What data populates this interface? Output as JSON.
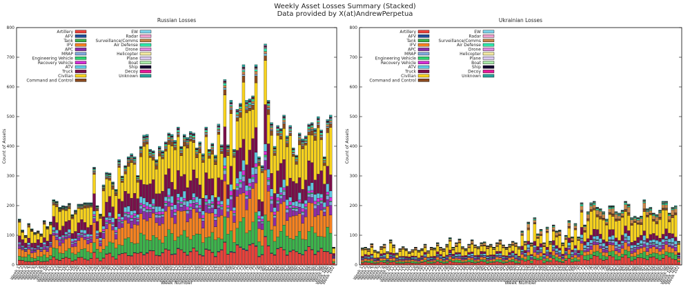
{
  "figure": {
    "title": "Weekly Asset Losses Summary (Stacked)",
    "subtitle": "Data provided by X(at)AndrewPerpetua"
  },
  "chart_data": [
    {
      "type": "bar",
      "stacked": true,
      "title": "Russian Losses",
      "xlabel": "Week Number",
      "ylabel": "Count of Assets",
      "ylim": [
        0,
        800
      ],
      "yticks": [
        0,
        100,
        200,
        300,
        400,
        500,
        600,
        700,
        800
      ],
      "grid": false,
      "legend_position": "top-left",
      "week_count": 102,
      "legend": [
        {
          "name": "Artillery",
          "color": "#e8413a"
        },
        {
          "name": "AFV",
          "color": "#1f4e9a"
        },
        {
          "name": "Tank",
          "color": "#3cb44b"
        },
        {
          "name": "IFV",
          "color": "#f58220"
        },
        {
          "name": "APC",
          "color": "#8e2ba8"
        },
        {
          "name": "MRAP",
          "color": "#7fa7d9"
        },
        {
          "name": "Engineering Vehicle",
          "color": "#2dd36f"
        },
        {
          "name": "Recovery Vehicle",
          "color": "#d62fd6"
        },
        {
          "name": "ATV",
          "color": "#5ec7e0"
        },
        {
          "name": "Truck",
          "color": "#7a0f4a"
        },
        {
          "name": "Civilian",
          "color": "#f7d21e"
        },
        {
          "name": "Command and Control",
          "color": "#8b4a1e"
        },
        {
          "name": "EW",
          "color": "#7ad0e8"
        },
        {
          "name": "Radar",
          "color": "#f0a0d0"
        },
        {
          "name": "Surveillance/Comms",
          "color": "#c8864a"
        },
        {
          "name": "Air Defense",
          "color": "#2ee6a8"
        },
        {
          "name": "Drone",
          "color": "#e088e0"
        },
        {
          "name": "Helicopter",
          "color": "#f0e6a0"
        },
        {
          "name": "Plane",
          "color": "#d9c8f0"
        },
        {
          "name": "Boat",
          "color": "#a8e8a8"
        },
        {
          "name": "Ship",
          "color": "#140030"
        },
        {
          "name": "Decoy",
          "color": "#e8189a"
        },
        {
          "name": "Unknown",
          "color": "#2aa198"
        }
      ],
      "totals": [
        155,
        118,
        100,
        140,
        122,
        110,
        115,
        105,
        150,
        130,
        145,
        220,
        215,
        195,
        200,
        198,
        208,
        170,
        185,
        205,
        205,
        210,
        210,
        210,
        330,
        200,
        172,
        270,
        312,
        310,
        280,
        255,
        355,
        300,
        335,
        365,
        375,
        365,
        302,
        400,
        438,
        440,
        390,
        385,
        355,
        400,
        385,
        415,
        445,
        440,
        420,
        465,
        400,
        440,
        430,
        450,
        445,
        395,
        415,
        375,
        465,
        390,
        410,
        370,
        475,
        405,
        625,
        405,
        555,
        390,
        525,
        545,
        675,
        555,
        560,
        570,
        675,
        365,
        335,
        745,
        555,
        480,
        400,
        470,
        460,
        505,
        435,
        470,
        395,
        370,
        445,
        425,
        435,
        475,
        480,
        460,
        500,
        455,
        365,
        490,
        505,
        60
      ],
      "shares": [
        0.1,
        0.004,
        0.12,
        0.16,
        0.05,
        0.02,
        0.007,
        0.02,
        0.04,
        0.14,
        0.24,
        0.025,
        0.007,
        0.003,
        0.01,
        0.01,
        0.004,
        0.002,
        0.001,
        0.002,
        0.002,
        0.003,
        0.01
      ]
    },
    {
      "type": "bar",
      "stacked": true,
      "title": "Ukrainian Losses",
      "xlabel": "Week Number",
      "ylabel": "Count of Assets",
      "ylim": [
        0,
        800
      ],
      "yticks": [
        0,
        100,
        200,
        300,
        400,
        500,
        600,
        700,
        800
      ],
      "grid": false,
      "legend_position": "top-left",
      "week_count": 102,
      "legend": [
        {
          "name": "Artillery",
          "color": "#e8413a"
        },
        {
          "name": "AFV",
          "color": "#1f4e9a"
        },
        {
          "name": "Tank",
          "color": "#3cb44b"
        },
        {
          "name": "IFV",
          "color": "#f58220"
        },
        {
          "name": "APC",
          "color": "#8e2ba8"
        },
        {
          "name": "MRAP",
          "color": "#7fa7d9"
        },
        {
          "name": "Engineering Vehicle",
          "color": "#2dd36f"
        },
        {
          "name": "Recovery Vehicle",
          "color": "#d62fd6"
        },
        {
          "name": "ATV",
          "color": "#5ec7e0"
        },
        {
          "name": "Truck",
          "color": "#7a0f4a"
        },
        {
          "name": "Civilian",
          "color": "#f7d21e"
        },
        {
          "name": "Command and Control",
          "color": "#8b4a1e"
        },
        {
          "name": "EW",
          "color": "#7ad0e8"
        },
        {
          "name": "Radar",
          "color": "#f0a0d0"
        },
        {
          "name": "Surveillance/Comms",
          "color": "#c8864a"
        },
        {
          "name": "Air Defense",
          "color": "#2ee6a8"
        },
        {
          "name": "Drone",
          "color": "#e088e0"
        },
        {
          "name": "Helicopter",
          "color": "#f0e6a0"
        },
        {
          "name": "Plane",
          "color": "#d9c8f0"
        },
        {
          "name": "Boat",
          "color": "#a8e8a8"
        },
        {
          "name": "Ship",
          "color": "#140030"
        },
        {
          "name": "Decoy",
          "color": "#e8189a"
        },
        {
          "name": "Unknown",
          "color": "#2aa198"
        }
      ],
      "totals": [
        58,
        60,
        55,
        72,
        50,
        45,
        62,
        70,
        45,
        85,
        68,
        40,
        55,
        62,
        55,
        45,
        52,
        60,
        50,
        55,
        70,
        48,
        60,
        58,
        75,
        60,
        55,
        70,
        92,
        60,
        75,
        88,
        62,
        55,
        70,
        85,
        68,
        62,
        75,
        78,
        65,
        70,
        60,
        75,
        85,
        68,
        60,
        70,
        80,
        75,
        62,
        115,
        80,
        145,
        75,
        160,
        105,
        120,
        75,
        128,
        80,
        135,
        115,
        118,
        75,
        100,
        150,
        95,
        140,
        95,
        210,
        135,
        180,
        210,
        215,
        195,
        190,
        180,
        155,
        200,
        200,
        180,
        175,
        185,
        215,
        205,
        160,
        165,
        160,
        165,
        220,
        190,
        195,
        175,
        170,
        185,
        215,
        215,
        175,
        195,
        200,
        80
      ],
      "shares": [
        0.12,
        0.003,
        0.08,
        0.09,
        0.05,
        0.03,
        0.007,
        0.01,
        0.06,
        0.09,
        0.3,
        0.03,
        0.005,
        0.002,
        0.07,
        0.02,
        0.005,
        0.002,
        0.002,
        0.01,
        0.002,
        0.003,
        0.01
      ]
    }
  ]
}
